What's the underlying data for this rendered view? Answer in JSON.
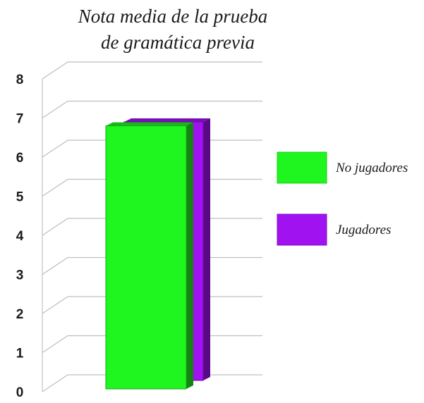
{
  "chart_data": {
    "type": "bar",
    "title": "Nota media de la prueba de gramática previa",
    "title_lines": [
      "Nota media de la prueba",
      "de gramática previa"
    ],
    "xlabel": "",
    "ylabel": "",
    "ylim": [
      0,
      8
    ],
    "yticks": [
      0,
      1,
      2,
      3,
      4,
      5,
      6,
      7,
      8
    ],
    "grid": true,
    "legend_position": "right",
    "style": "3d-depth",
    "series": [
      {
        "name": "No jugadores",
        "values": [
          6.8
        ],
        "color": "#1ff51f"
      },
      {
        "name": "Jugadores",
        "values": [
          6.9
        ],
        "color": "#a012f0"
      }
    ]
  }
}
